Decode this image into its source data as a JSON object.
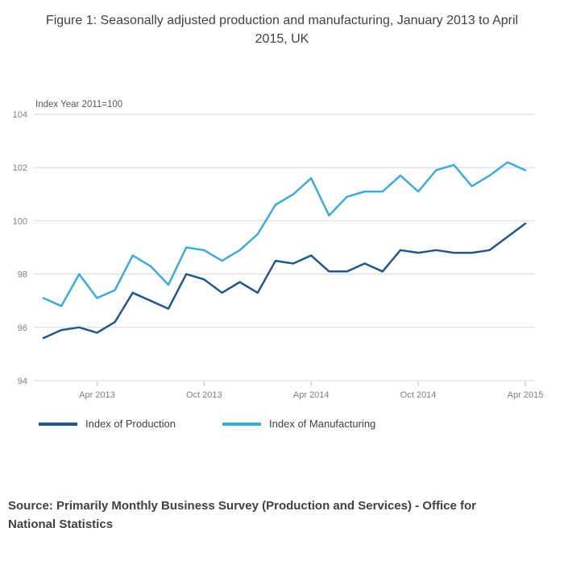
{
  "figure": {
    "title": "Figure 1: Seasonally adjusted production and manufacturing, January 2013 to April 2015, UK",
    "source": "Source: Primarily Monthly Business Survey (Production and Services) - Office for National Statistics"
  },
  "chart_data": {
    "type": "line",
    "title": "Figure 1: Seasonally adjusted production and manufacturing, January 2013 to April 2015, UK",
    "y_axis_label": "Index Year 2011=100",
    "ylim": [
      94,
      104
    ],
    "yticks": [
      94,
      96,
      98,
      100,
      102,
      104
    ],
    "grid": true,
    "legend_position": "bottom",
    "x": [
      "Jan 2013",
      "Feb 2013",
      "Mar 2013",
      "Apr 2013",
      "May 2013",
      "Jun 2013",
      "Jul 2013",
      "Aug 2013",
      "Sep 2013",
      "Oct 2013",
      "Nov 2013",
      "Dec 2013",
      "Jan 2014",
      "Feb 2014",
      "Mar 2014",
      "Apr 2014",
      "May 2014",
      "Jun 2014",
      "Jul 2014",
      "Aug 2014",
      "Sep 2014",
      "Oct 2014",
      "Nov 2014",
      "Dec 2014",
      "Jan 2015",
      "Feb 2015",
      "Mar 2015",
      "Apr 2015"
    ],
    "xtick_labels": [
      "Apr 2013",
      "Oct 2013",
      "Apr 2014",
      "Oct 2014",
      "Apr 2015"
    ],
    "xtick_indices": [
      3,
      9,
      15,
      21,
      27
    ],
    "series": [
      {
        "name": "Index of Production",
        "color": "#235789",
        "values": [
          95.6,
          95.9,
          96.0,
          95.8,
          96.2,
          97.3,
          97.0,
          96.7,
          98.0,
          97.8,
          97.3,
          97.7,
          97.3,
          98.5,
          98.4,
          98.7,
          98.1,
          98.1,
          98.4,
          98.1,
          98.9,
          98.8,
          98.9,
          98.8,
          98.8,
          98.9,
          99.4,
          99.9
        ]
      },
      {
        "name": "Index of Manufacturing",
        "color": "#3fa9dc",
        "values": [
          97.1,
          96.8,
          98.0,
          97.1,
          97.4,
          98.7,
          98.3,
          97.6,
          99.0,
          98.9,
          98.5,
          98.9,
          99.5,
          100.6,
          101.0,
          101.6,
          100.2,
          100.9,
          101.1,
          101.1,
          101.7,
          101.1,
          101.9,
          102.1,
          101.3,
          101.7,
          102.2,
          101.9
        ]
      }
    ],
    "colors": {
      "grid": "#d9d9d9",
      "tick_label": "#7f7f7f",
      "axis_annotation": "#595959"
    }
  }
}
